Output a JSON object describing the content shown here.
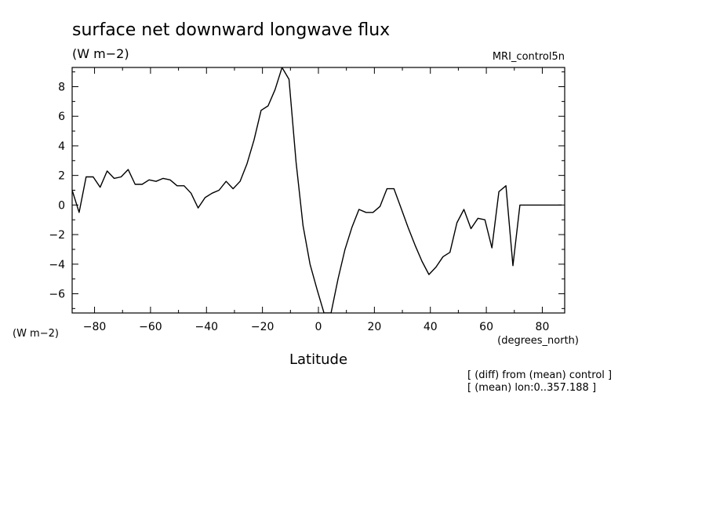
{
  "chart_data": {
    "type": "line",
    "title": "surface net downward longwave flux",
    "units": "(W m−2)",
    "y_units_label": "(W m−2)",
    "dataset_label": "MRI_control5n",
    "xlabel": "Latitude",
    "x_units_label": "(degrees_north)",
    "notes": [
      "[ (diff) from (mean) control ]",
      "[ (mean) lon:0..357.188 ]"
    ],
    "xlim": [
      -88,
      88
    ],
    "ylim": [
      -7.3,
      9.3
    ],
    "x_ticks": [
      -80,
      -60,
      -40,
      -20,
      0,
      20,
      40,
      60,
      80
    ],
    "x_tick_labels": [
      "−80",
      "−60",
      "−40",
      "−20",
      "0",
      "20",
      "40",
      "60",
      "80"
    ],
    "y_ticks": [
      -6,
      -4,
      -2,
      0,
      2,
      4,
      6,
      8
    ],
    "y_tick_labels": [
      "−6",
      "−4",
      "−2",
      "0",
      "2",
      "4",
      "6",
      "8"
    ],
    "grid": false,
    "series": [
      {
        "x": [
          -88,
          -85.5,
          -83,
          -80.5,
          -78,
          -75.5,
          -73,
          -70.5,
          -68,
          -65.5,
          -63,
          -60.5,
          -58,
          -55.5,
          -53,
          -50.5,
          -48,
          -45.5,
          -43,
          -40.5,
          -38,
          -35.5,
          -33,
          -30.5,
          -28,
          -25.5,
          -23,
          -20.5,
          -18,
          -15.5,
          -13,
          -10.5,
          -8,
          -5.5,
          -3,
          -0.5,
          2,
          4.5,
          7,
          9.5,
          12,
          14.5,
          17,
          19.5,
          22,
          24.5,
          27,
          29.5,
          32,
          34.5,
          37,
          39.5,
          42,
          44.5,
          47,
          49.5,
          52,
          54.5,
          57,
          59.5,
          62,
          64.5,
          67,
          69.5,
          72,
          74.5,
          77,
          79.5,
          82,
          84.5,
          87
        ],
        "y": [
          1.0,
          -0.5,
          1.9,
          1.9,
          1.2,
          2.3,
          1.8,
          1.9,
          2.4,
          1.4,
          1.4,
          1.7,
          1.6,
          1.8,
          1.7,
          1.3,
          1.3,
          0.8,
          -0.2,
          0.5,
          0.8,
          1.0,
          1.6,
          1.1,
          1.6,
          2.8,
          4.4,
          6.4,
          6.7,
          7.8,
          9.3,
          8.5,
          2.9,
          -1.4,
          -4.0,
          -5.7,
          -7.3,
          -7.3,
          -5.0,
          -3.0,
          -1.5,
          -0.3,
          -0.5,
          -0.5,
          -0.1,
          1.1,
          1.1,
          -0.2,
          -1.5,
          -2.7,
          -3.8,
          -4.7,
          -4.2,
          -3.5,
          -3.2,
          -1.2,
          -0.3,
          -1.6,
          -0.9,
          -1.0,
          -2.9,
          0.9,
          1.3,
          -4.1,
          0.0,
          0.0,
          0.0,
          0.0,
          0.0,
          0.0,
          0.0
        ]
      }
    ]
  }
}
